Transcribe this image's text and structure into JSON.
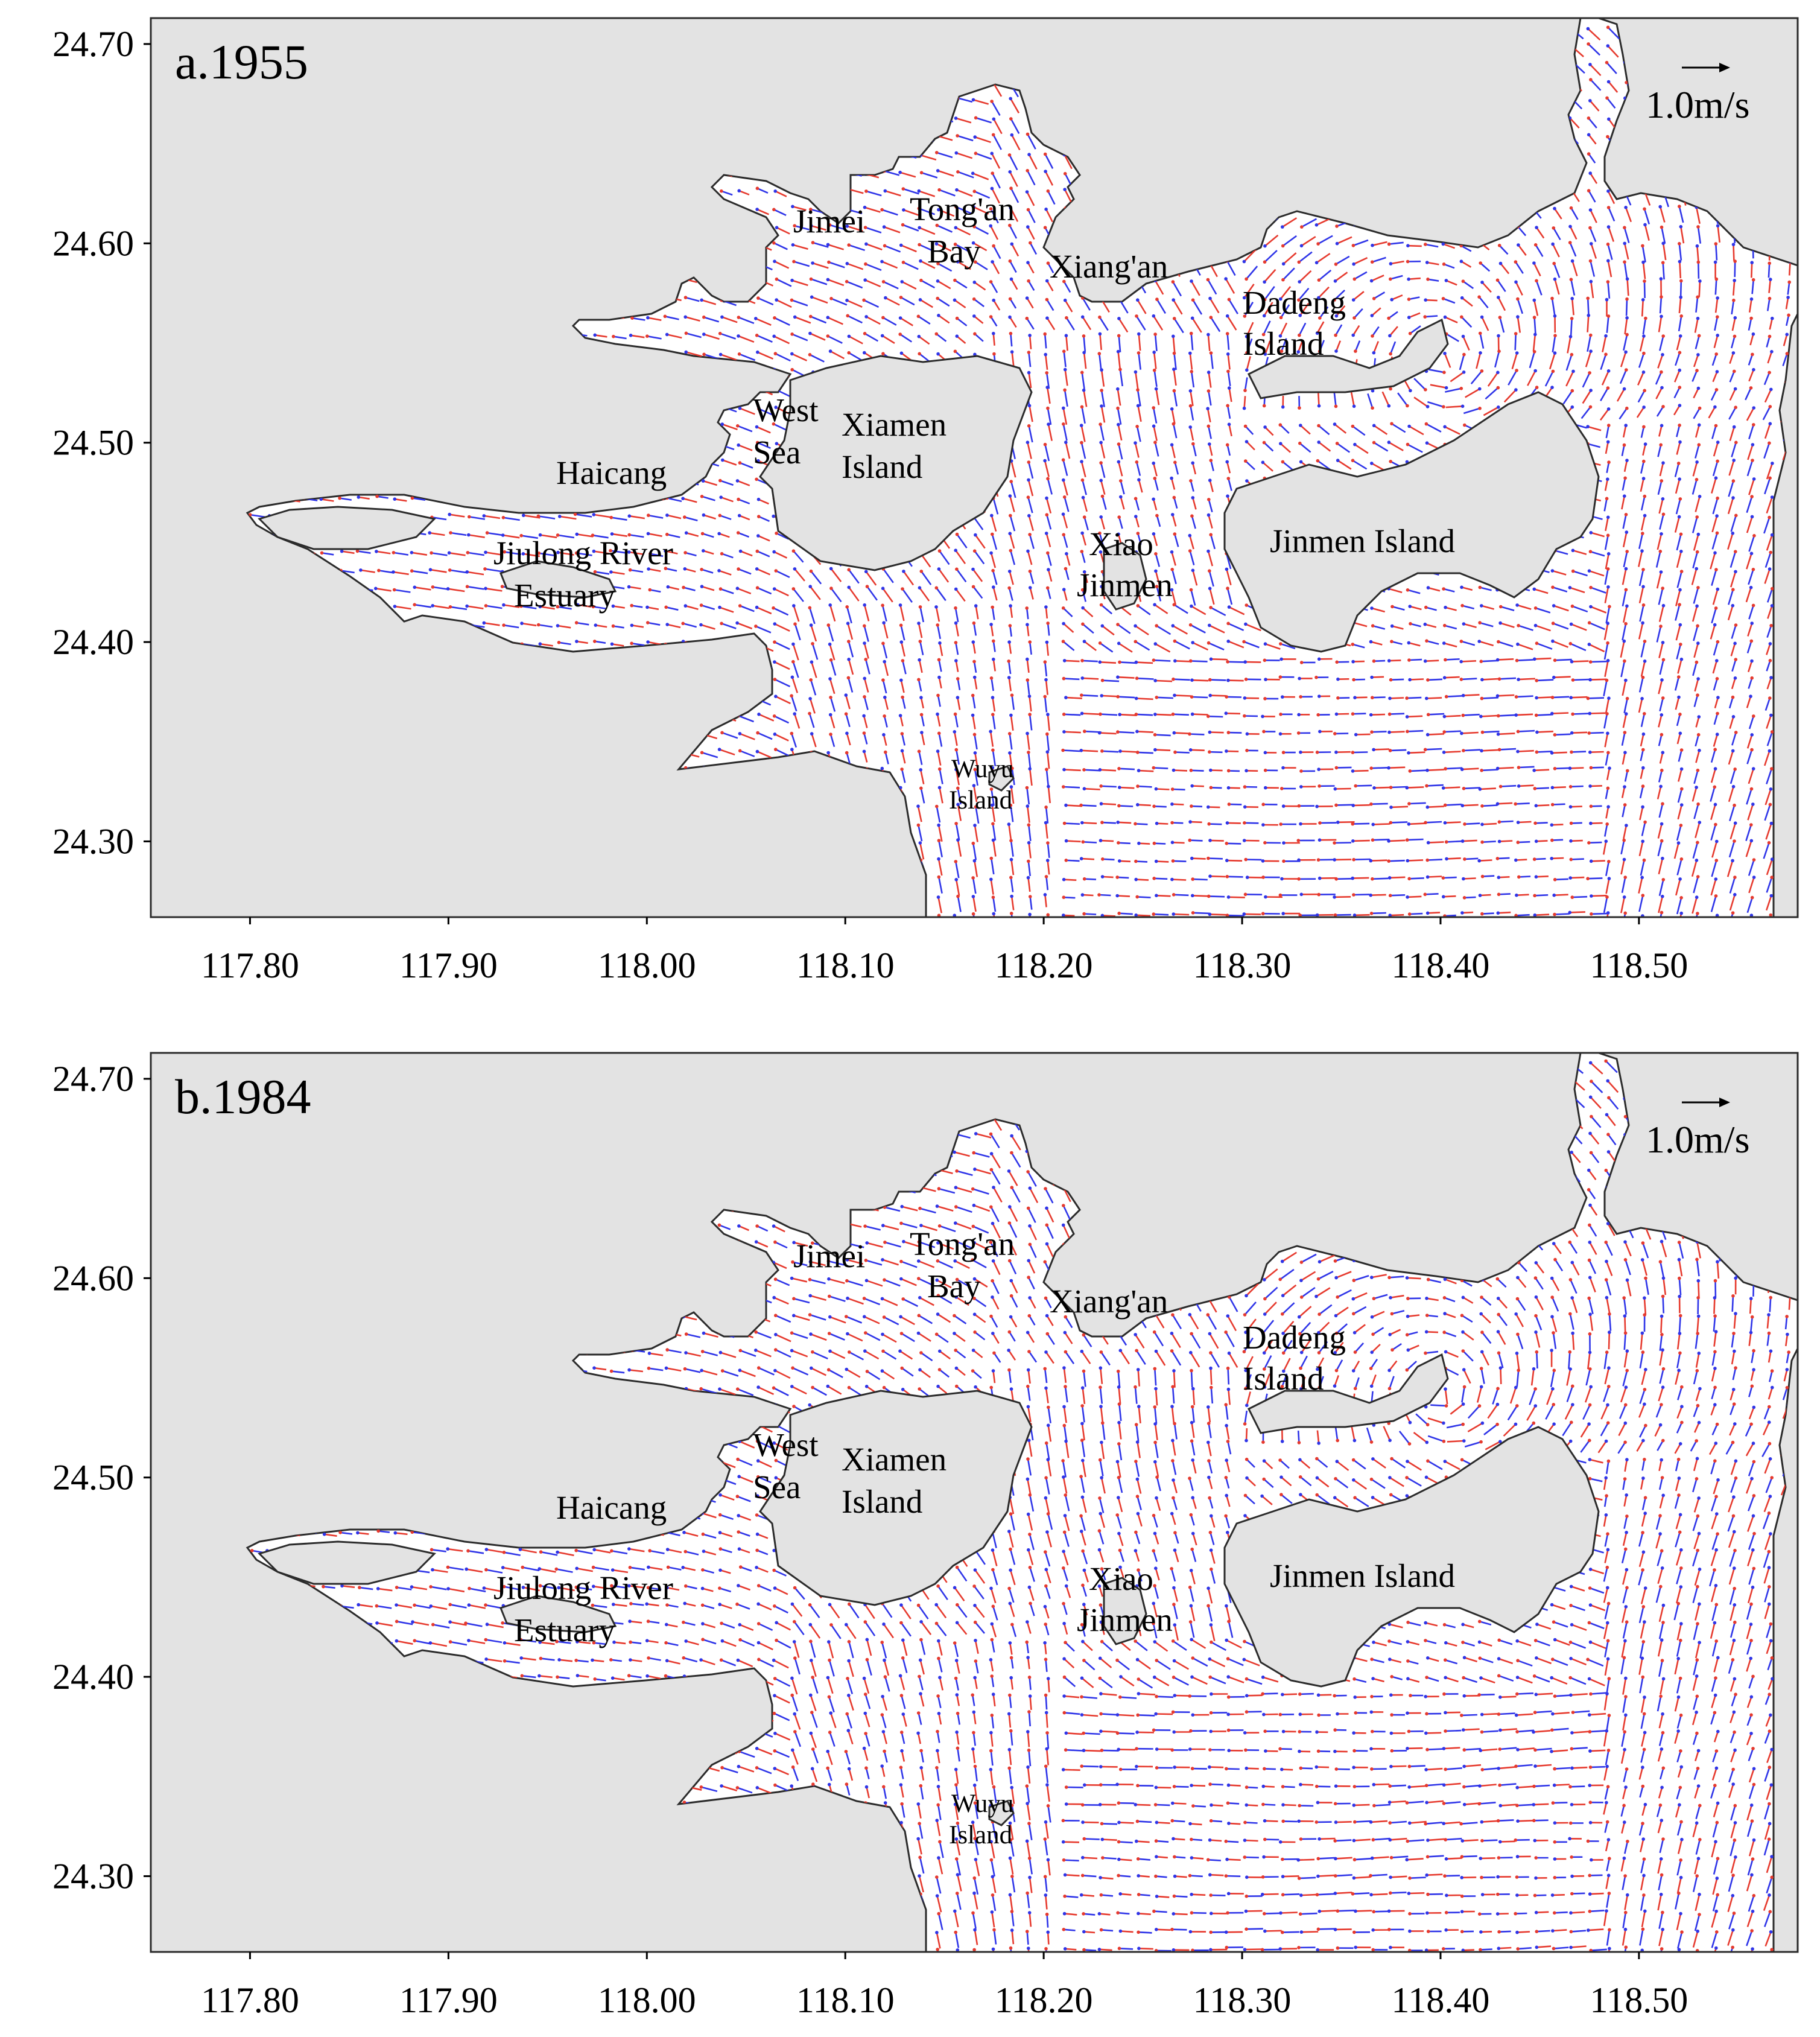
{
  "figure": {
    "x_ticks": [
      "117.80",
      "117.90",
      "118.00",
      "118.10",
      "118.20",
      "118.30",
      "118.40",
      "118.50"
    ],
    "y_ticks": [
      "24.70",
      "24.60",
      "24.50",
      "24.40",
      "24.30"
    ],
    "colors": {
      "land": "#e3e3e3",
      "water": "#ffffff",
      "coastline": "#2b2b2b",
      "vector_blue": "#2f35e8",
      "vector_red": "#e63a2e"
    }
  },
  "panels": [
    {
      "label": "a.1955",
      "scale": {
        "label": "1.0m/s",
        "speed": 1.0
      },
      "places": {
        "jimei": "Jimei",
        "tongan_1": "Tong'an",
        "tongan_2": "Bay",
        "xiangan": "Xiang'an",
        "dadeng_1": "Dadeng",
        "dadeng_2": "Island",
        "westsea_1": "West",
        "westsea_2": "Sea",
        "xiamen_1": "Xiamen",
        "xiamen_2": "Island",
        "haicang": "Haicang",
        "jiulong_1": "Jiulong River",
        "jiulong_2": "Estuary",
        "xiaojinmen_1": "Xiao",
        "xiaojinmen_2": "Jinmen",
        "jinmen": "Jinmen Island",
        "wuyu_1": "Wuyu",
        "wuyu_2": "Island"
      }
    },
    {
      "label": "b.1984",
      "scale": {
        "label": "1.0m/s",
        "speed": 1.0
      },
      "places": {
        "jimei": "Jimei",
        "tongan_1": "Tong'an",
        "tongan_2": "Bay",
        "xiangan": "Xiang'an",
        "dadeng_1": "Dadeng",
        "dadeng_2": "Island",
        "westsea_1": "West",
        "westsea_2": "Sea",
        "xiamen_1": "Xiamen",
        "xiamen_2": "Island",
        "haicang": "Haicang",
        "jiulong_1": "Jiulong River",
        "jiulong_2": "Estuary",
        "xiaojinmen_1": "Xiao",
        "xiaojinmen_2": "Jinmen",
        "jinmen": "Jinmen Island",
        "wuyu_1": "Wuyu",
        "wuyu_2": "Island"
      }
    }
  ]
}
